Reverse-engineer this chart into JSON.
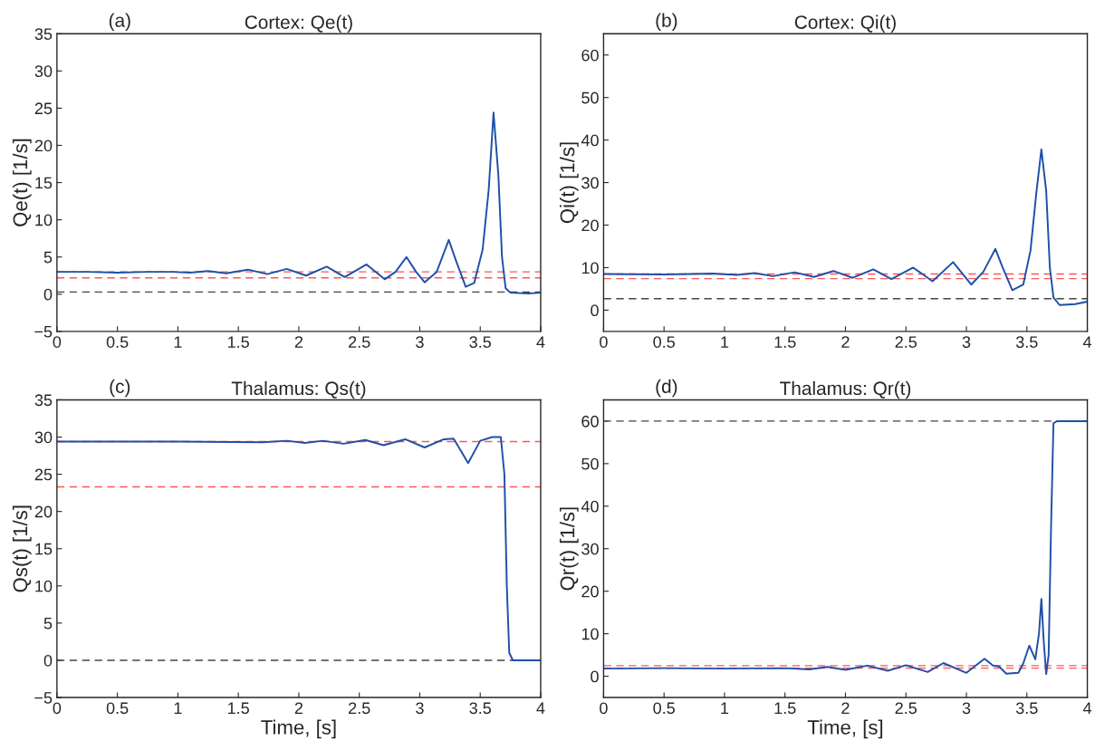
{
  "chart_data": [
    {
      "type": "line",
      "title": "Cortex: Qe(t)",
      "ylabel": "Qe(t) [1/s]",
      "annotations": [
        "(a)"
      ],
      "series": [
        {
          "color": "#1f4fa8",
          "x": [
            0,
            0.25,
            0.5,
            0.75,
            0.95,
            1.1,
            1.25,
            1.4,
            1.58,
            1.74,
            1.9,
            2.06,
            2.23,
            2.38,
            2.56,
            2.71,
            2.8,
            2.89,
            2.97,
            3.04,
            3.14,
            3.24,
            3.3,
            3.38,
            3.45,
            3.52,
            3.57,
            3.61,
            3.65,
            3.68,
            3.71,
            3.75,
            3.9,
            4.0
          ],
          "values": [
            3.0,
            3.0,
            2.9,
            3.0,
            3.0,
            2.9,
            3.1,
            2.8,
            3.3,
            2.7,
            3.4,
            2.5,
            3.7,
            2.3,
            4.0,
            2.0,
            3.0,
            5.0,
            3.0,
            1.6,
            3.0,
            7.3,
            4.5,
            1.0,
            1.5,
            6.0,
            14,
            24.4,
            16,
            5,
            0.8,
            0.2,
            0.1,
            0.2
          ]
        }
      ],
      "ref_lines": [
        {
          "axis": "y",
          "value": 3.0,
          "color": "#ff5555",
          "line_style": "dashed"
        },
        {
          "axis": "y",
          "value": 2.2,
          "color": "#ff5555",
          "line_style": "dashed"
        },
        {
          "axis": "y",
          "value": 0.3,
          "color": "#444444",
          "line_style": "dashed"
        }
      ],
      "xlim": [
        0,
        4
      ],
      "xticks": [
        0,
        0.5,
        1,
        1.5,
        2,
        2.5,
        3,
        3.5,
        4
      ],
      "ylim": [
        -5,
        35
      ],
      "yticks": [
        {
          "value": -5,
          "label": "−5"
        },
        0,
        5,
        10,
        15,
        20,
        25,
        30,
        35
      ],
      "grid": false,
      "legend": false
    },
    {
      "type": "line",
      "title": "Cortex: Qi(t)",
      "ylabel": "Qi(t) [1/s]",
      "annotations": [
        "(b)"
      ],
      "series": [
        {
          "color": "#1f4fa8",
          "x": [
            0,
            0.5,
            0.9,
            1.1,
            1.25,
            1.4,
            1.58,
            1.74,
            1.9,
            2.06,
            2.23,
            2.38,
            2.56,
            2.72,
            2.89,
            3.04,
            3.14,
            3.24,
            3.3,
            3.38,
            3.47,
            3.53,
            3.58,
            3.62,
            3.66,
            3.69,
            3.72,
            3.77,
            3.9,
            4.0
          ],
          "values": [
            8.5,
            8.4,
            8.6,
            8.3,
            8.7,
            8.0,
            8.9,
            7.8,
            9.2,
            7.6,
            9.6,
            7.3,
            10.0,
            6.8,
            11.3,
            6.0,
            9,
            14.4,
            10,
            4.7,
            6,
            14,
            28,
            37.8,
            28,
            10,
            3,
            1.2,
            1.4,
            2.0
          ]
        }
      ],
      "ref_lines": [
        {
          "axis": "y",
          "value": 8.5,
          "color": "#ff5555",
          "line_style": "dashed"
        },
        {
          "axis": "y",
          "value": 7.4,
          "color": "#ff5555",
          "line_style": "dashed"
        },
        {
          "axis": "y",
          "value": 2.7,
          "color": "#444444",
          "line_style": "dashed"
        }
      ],
      "xlim": [
        0,
        4
      ],
      "xticks": [
        0,
        0.5,
        1,
        1.5,
        2,
        2.5,
        3,
        3.5,
        4
      ],
      "ylim": [
        -5,
        65
      ],
      "yticks": [
        0,
        10,
        20,
        30,
        40,
        50,
        60
      ],
      "grid": false,
      "legend": false
    },
    {
      "type": "line",
      "title": "Thalamus: Qs(t)",
      "xlabel": "Time, [s]",
      "ylabel": "Qs(t) [1/s]",
      "annotations": [
        "(c)"
      ],
      "series": [
        {
          "color": "#1f4fa8",
          "x": [
            0,
            1,
            1.7,
            1.9,
            2.05,
            2.2,
            2.37,
            2.55,
            2.7,
            2.88,
            3.04,
            3.2,
            3.28,
            3.4,
            3.5,
            3.6,
            3.67,
            3.7,
            3.72,
            3.74,
            3.77,
            4.0
          ],
          "values": [
            29.4,
            29.4,
            29.3,
            29.5,
            29.2,
            29.5,
            29.1,
            29.6,
            28.9,
            29.7,
            28.6,
            29.7,
            29.8,
            26.5,
            29.5,
            30.0,
            30.0,
            25,
            10,
            1,
            0,
            0
          ]
        }
      ],
      "ref_lines": [
        {
          "axis": "y",
          "value": 29.4,
          "color": "#ff5555",
          "line_style": "dashed"
        },
        {
          "axis": "y",
          "value": 23.3,
          "color": "#ff5555",
          "line_style": "dashed"
        },
        {
          "axis": "y",
          "value": 0,
          "color": "#444444",
          "line_style": "dashed"
        }
      ],
      "xlim": [
        0,
        4
      ],
      "xticks": [
        0,
        0.5,
        1,
        1.5,
        2,
        2.5,
        3,
        3.5,
        4
      ],
      "ylim": [
        -5,
        35
      ],
      "yticks": [
        {
          "value": -5,
          "label": "−5"
        },
        0,
        5,
        10,
        15,
        20,
        25,
        30,
        35
      ],
      "grid": false,
      "legend": false
    },
    {
      "type": "line",
      "title": "Thalamus: Qr(t)",
      "xlabel": "Time, [s]",
      "ylabel": "Qr(t) [1/s]",
      "annotations": [
        "(d)"
      ],
      "series": [
        {
          "color": "#1f4fa8",
          "x": [
            0,
            0.5,
            1,
            1.5,
            1.7,
            1.85,
            2.0,
            2.18,
            2.35,
            2.5,
            2.68,
            2.81,
            3.0,
            3.15,
            3.22,
            3.27,
            3.33,
            3.43,
            3.47,
            3.52,
            3.57,
            3.6,
            3.62,
            3.64,
            3.66,
            3.68,
            3.7,
            3.72,
            3.75,
            4.0
          ],
          "values": [
            1.8,
            1.9,
            1.8,
            1.9,
            1.6,
            2.2,
            1.5,
            2.5,
            1.3,
            2.6,
            1.0,
            3.1,
            0.8,
            4.1,
            2.5,
            2.3,
            0.6,
            0.8,
            3,
            7.2,
            4.0,
            10,
            18.2,
            8,
            0.5,
            5,
            35,
            59.5,
            60,
            60
          ]
        }
      ],
      "ref_lines": [
        {
          "axis": "y",
          "value": 60,
          "color": "#444444",
          "line_style": "dashed"
        },
        {
          "axis": "y",
          "value": 2.5,
          "color": "#ff5555",
          "line_style": "dashed"
        },
        {
          "axis": "y",
          "value": 1.9,
          "color": "#ff5555",
          "line_style": "dashed"
        }
      ],
      "xlim": [
        0,
        4
      ],
      "xticks": [
        0,
        0.5,
        1,
        1.5,
        2,
        2.5,
        3,
        3.5,
        4
      ],
      "ylim": [
        -5,
        65
      ],
      "yticks": [
        0,
        10,
        20,
        30,
        40,
        50,
        60
      ],
      "grid": false,
      "legend": false
    }
  ]
}
